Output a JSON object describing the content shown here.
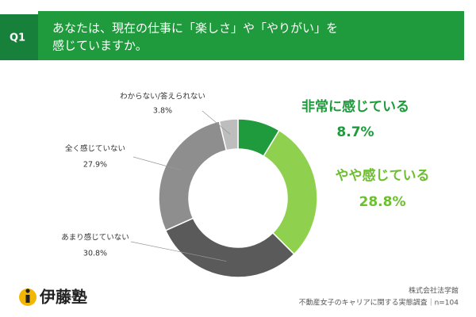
{
  "chart_data": {
    "type": "donut",
    "label": "Q1",
    "title": [
      "あなたは、現在の仕事に「楽しさ」や「やりがい」を",
      "感じていますか。"
    ],
    "categories": [
      "非常に感じている",
      "やや感じている",
      "あまり感じていない",
      "全く感じていない",
      "わからない/答えられない"
    ],
    "values": [
      8.7,
      28.8,
      30.8,
      27.9,
      3.8
    ],
    "value_labels": [
      "8.7%",
      "28.8%",
      "30.8%",
      "27.9%",
      "3.8%"
    ],
    "colors": [
      "#1f9a3c",
      "#8fd14f",
      "#5a5a5a",
      "#8e8e8e",
      "#bdbdbd"
    ],
    "logo": "伊藤塾",
    "source": [
      "株式会社法学館",
      "不動産女子のキャリアに関する実態調査｜n=104"
    ]
  }
}
